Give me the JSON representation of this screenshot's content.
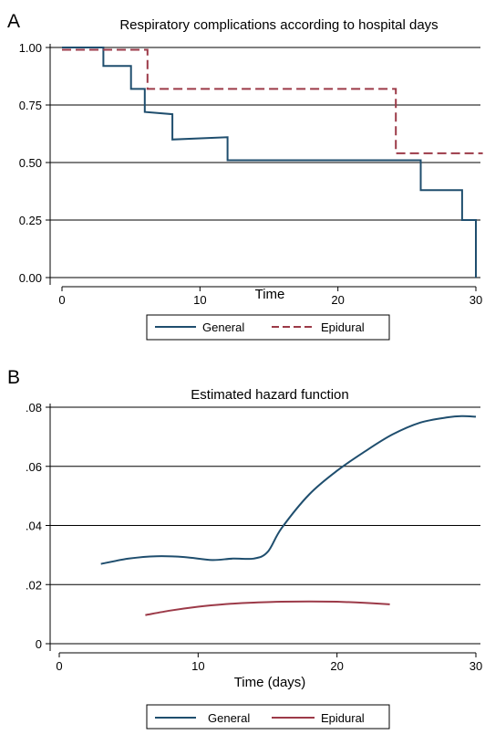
{
  "panels": {
    "a_letter": "A",
    "b_letter": "B"
  },
  "colors": {
    "general": "#1f4e6e",
    "epidural": "#9c3a48",
    "grid": "#000000",
    "background": "#ffffff"
  },
  "chart_data": [
    {
      "type": "line",
      "step": true,
      "title": "Respiratory complications according to hospital days",
      "xlabel": "Time",
      "ylabel": "",
      "xlim": [
        0,
        30
      ],
      "ylim": [
        0,
        1
      ],
      "xticks": [
        "0",
        "10",
        "20",
        "30"
      ],
      "yticks": [
        "0.00",
        "0.25",
        "0.50",
        "0.75",
        "1.00"
      ],
      "grid": true,
      "legend_position": "bottom",
      "series": [
        {
          "name": "General",
          "line_style": "solid",
          "x": [
            0,
            3,
            3,
            5,
            5,
            6,
            6,
            8,
            8,
            12,
            12,
            26,
            26,
            29,
            29,
            30,
            30
          ],
          "y": [
            1.0,
            1.0,
            0.92,
            0.92,
            0.82,
            0.82,
            0.72,
            0.71,
            0.6,
            0.61,
            0.51,
            0.51,
            0.38,
            0.38,
            0.25,
            0.25,
            0.0
          ]
        },
        {
          "name": "Epidural",
          "line_style": "dashed",
          "x": [
            0,
            6.2,
            6.2,
            24.2,
            24.2,
            30.5
          ],
          "y": [
            0.99,
            0.99,
            0.82,
            0.82,
            0.54,
            0.54
          ]
        }
      ]
    },
    {
      "type": "line",
      "title": "Estimated hazard function",
      "xlabel": "Time (days)",
      "ylabel": "",
      "xlim": [
        0,
        30
      ],
      "ylim": [
        0,
        0.08
      ],
      "xticks": [
        "0",
        "10",
        "20",
        "30"
      ],
      "yticks": [
        "0",
        ".02",
        ".04",
        ".06",
        ".08"
      ],
      "grid": true,
      "legend_position": "bottom",
      "series": [
        {
          "name": "General",
          "line_style": "solid",
          "x": [
            3,
            5,
            7,
            9,
            11,
            12.5,
            14,
            15,
            16,
            18,
            20,
            22,
            24,
            26,
            28,
            29,
            30
          ],
          "y": [
            0.027,
            0.0288,
            0.0296,
            0.0293,
            0.0283,
            0.0288,
            0.0288,
            0.031,
            0.039,
            0.0505,
            0.0585,
            0.065,
            0.0708,
            0.0748,
            0.0766,
            0.077,
            0.0768
          ]
        },
        {
          "name": "Epidural",
          "line_style": "solid",
          "x": [
            6.2,
            8,
            10,
            12,
            14,
            16,
            18,
            20,
            22,
            23.8
          ],
          "y": [
            0.0097,
            0.0112,
            0.0125,
            0.0134,
            0.0139,
            0.0142,
            0.0143,
            0.0142,
            0.0138,
            0.0133
          ]
        }
      ]
    }
  ]
}
